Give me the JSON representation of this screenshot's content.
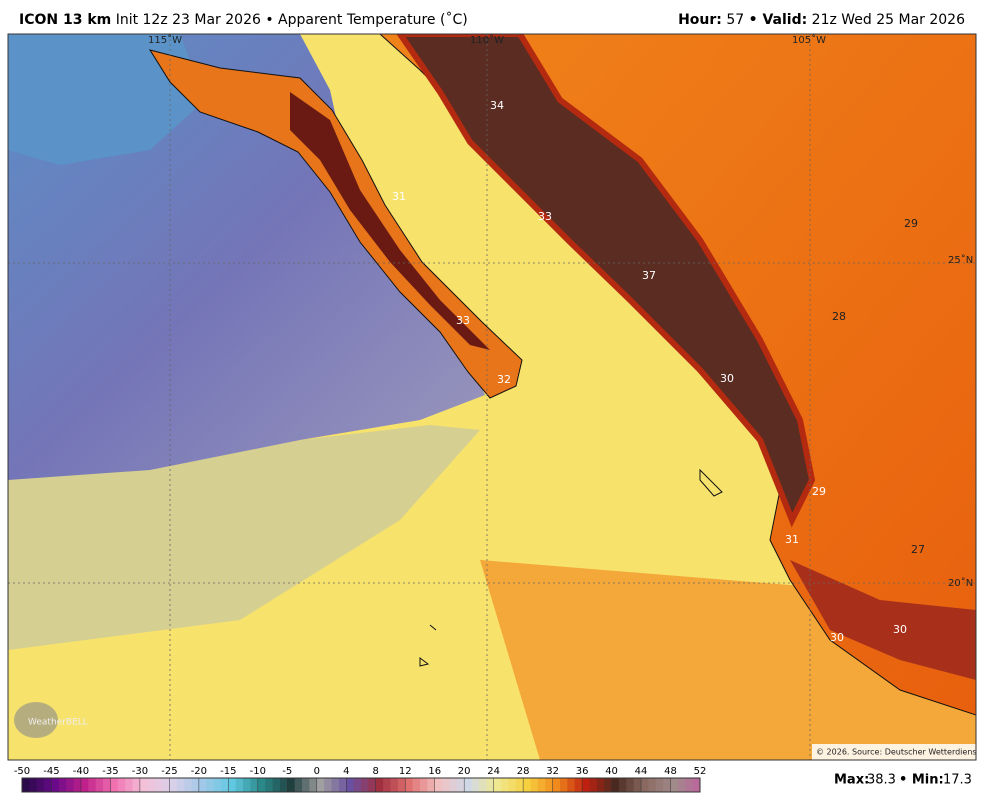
{
  "header": {
    "model": "ICON 13 km",
    "subtitle": "Init 12z 23 Mar 2026 • Apparent Temperature (˚C)",
    "hour_label": "Hour:",
    "hour": 57,
    "valid_label": "• Valid:",
    "valid": "21z Wed 25 Mar 2026"
  },
  "map": {
    "longitude_labels": [
      "115˚W",
      "110˚W",
      "105˚W"
    ],
    "latitude_labels": [
      "25˚N",
      "20˚N"
    ],
    "point_values": [
      34,
      31,
      33,
      37,
      33,
      32,
      30,
      29,
      28,
      29,
      31,
      27,
      30,
      30
    ],
    "logo": "WeatherBELL",
    "credit": "© 2026. Source: Deutscher Wetterdienst"
  },
  "colorbar": {
    "ticks": [
      -50,
      -45,
      -40,
      -35,
      -30,
      -25,
      -20,
      -15,
      -10,
      -5,
      0,
      4,
      8,
      12,
      16,
      20,
      24,
      28,
      32,
      36,
      40,
      44,
      48,
      52
    ]
  },
  "stats": {
    "max_label": "Max:",
    "max": 38.3,
    "min_label": "• Min:",
    "min": 17.3
  }
}
